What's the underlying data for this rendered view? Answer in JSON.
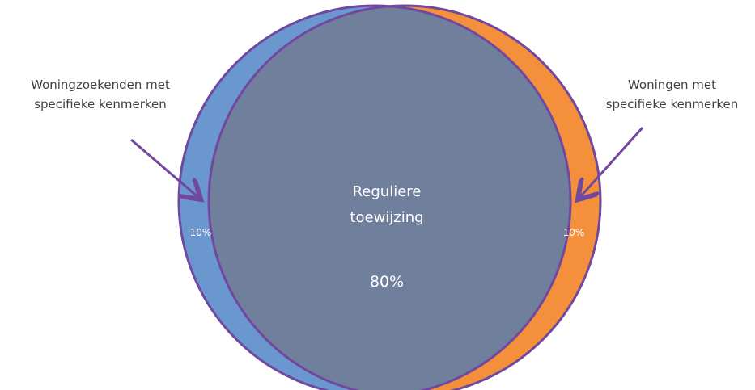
{
  "labels": {
    "left_line1": "Woningzoekenden met",
    "left_line2": "specifieke kenmerken",
    "right_line1": "Woningen met",
    "right_line2": "specifieke kenmerken"
  },
  "center": {
    "title_line1": "Reguliere",
    "title_line2": "toewijzing",
    "value": "80%"
  },
  "segments": {
    "left_value": "10%",
    "right_value": "10%"
  },
  "colors": {
    "left_circle": "#6b97cf",
    "right_circle": "#f4903c",
    "center_overlap": "#707f9c",
    "outline": "#7148a0",
    "arrow": "#7148a0"
  }
}
